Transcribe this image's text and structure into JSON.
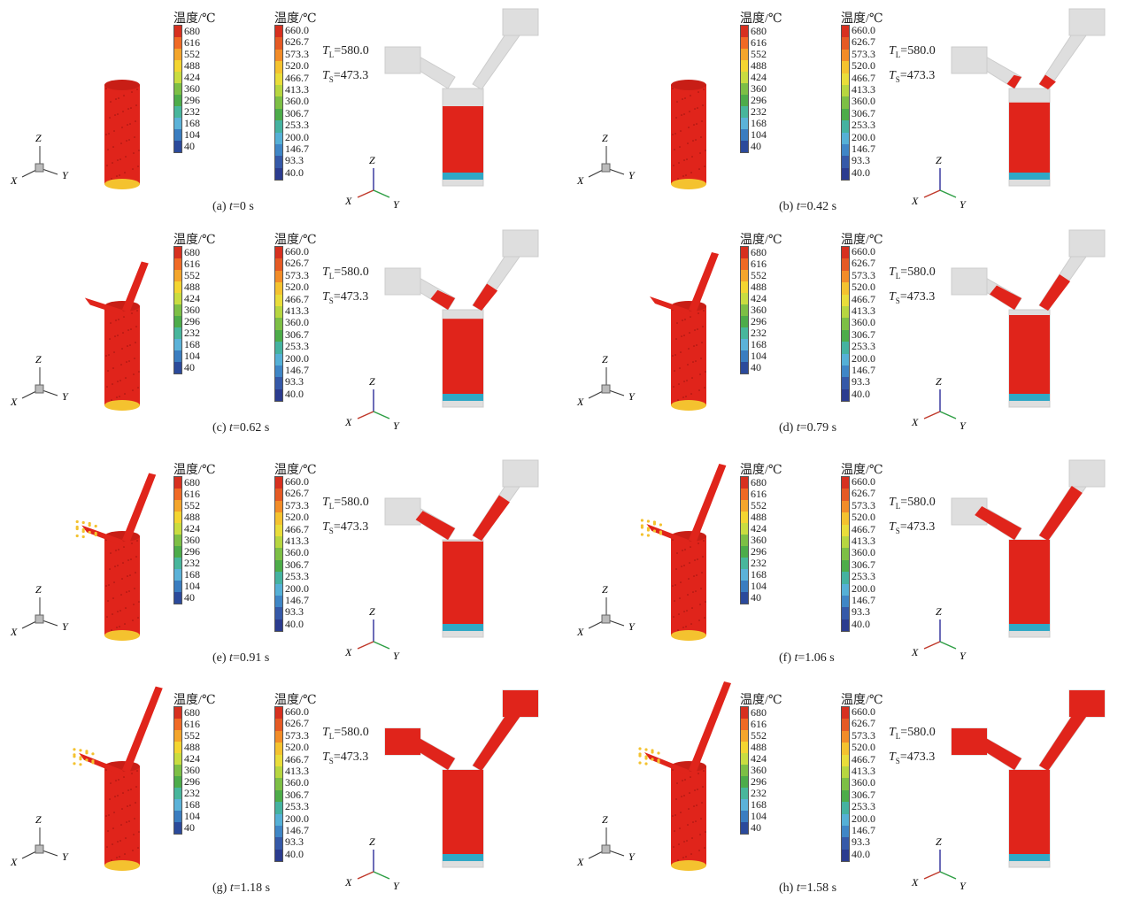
{
  "legend1": {
    "title": "温度/℃",
    "labels": [
      "680",
      "616",
      "552",
      "488",
      "424",
      "360",
      "296",
      "232",
      "168",
      "104",
      "40"
    ]
  },
  "legend2": {
    "title": "温度/℃",
    "labels": [
      "660.0",
      "626.7",
      "573.3",
      "520.0",
      "466.7",
      "413.3",
      "360.0",
      "306.7",
      "253.3",
      "200.0",
      "146.7",
      "93.3",
      "40.0"
    ]
  },
  "liquidus": {
    "symbol": "T",
    "sub": "L",
    "text": "=580.0"
  },
  "solidus": {
    "symbol": "T",
    "sub": "S",
    "text": "=473.3"
  },
  "axes": {
    "z": "Z",
    "x": "X",
    "y": "Y"
  },
  "colors": {
    "melt": "#e0241b",
    "ghost": "#d4d4d4",
    "cool": "#2fa8c6",
    "scale1": [
      "#d7301f",
      "#f06a25",
      "#f4a52b",
      "#f4d531",
      "#c9dc40",
      "#7dbf45",
      "#4dac4a",
      "#48b69c",
      "#5bb2d8",
      "#3a7dc0",
      "#2b4a9b"
    ],
    "scale2": [
      "#d7301f",
      "#e55a24",
      "#f28c28",
      "#f4c22f",
      "#e9dd3a",
      "#b7d640",
      "#7dbf45",
      "#4dac4a",
      "#45b2a0",
      "#55b0d6",
      "#3f86c6",
      "#3559a8",
      "#2b3c8f"
    ]
  },
  "panels": [
    {
      "label": "(a)",
      "t": "t",
      "eq": "=0 s",
      "fill": 0.0
    },
    {
      "label": "(b)",
      "t": "t",
      "eq": "=0.42 s",
      "fill": 0.15
    },
    {
      "label": "(c)",
      "t": "t",
      "eq": "=0.62 s",
      "fill": 0.35
    },
    {
      "label": "(d)",
      "t": "t",
      "eq": "=0.79 s",
      "fill": 0.5
    },
    {
      "label": "(e)",
      "t": "t",
      "eq": "=0.91 s",
      "fill": 0.65
    },
    {
      "label": "(f)",
      "t": "t",
      "eq": "=1.06 s",
      "fill": 0.8
    },
    {
      "label": "(g)",
      "t": "t",
      "eq": "=1.18 s",
      "fill": 0.92
    },
    {
      "label": "(h)",
      "t": "t",
      "eq": "=1.58 s",
      "fill": 1.0
    }
  ]
}
